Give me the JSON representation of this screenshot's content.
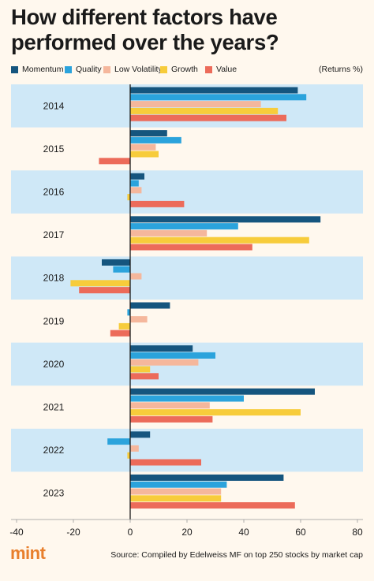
{
  "title": "How different factors have performed over the years?",
  "unit_note": "(Returns %)",
  "logo_text": "mint",
  "source": "Source: Compiled by Edelweiss MF on top 250 stocks by market cap",
  "colors": {
    "background": "#fff8ee",
    "band": "#cfe8f7",
    "Momentum": "#15557e",
    "Quality": "#2ba3dc",
    "Low Volatility": "#f5b79c",
    "Growth": "#f7cc3b",
    "Value": "#ec6b5a",
    "logo": "#e87f2c"
  },
  "chart_data": {
    "type": "bar",
    "orientation": "horizontal",
    "categories": [
      "2014",
      "2015",
      "2016",
      "2017",
      "2018",
      "2019",
      "2020",
      "2021",
      "2022",
      "2023"
    ],
    "series": [
      {
        "name": "Momentum",
        "values": [
          59,
          13,
          5,
          67,
          -10,
          14,
          22,
          65,
          7,
          54
        ]
      },
      {
        "name": "Quality",
        "values": [
          62,
          18,
          3,
          38,
          -6,
          -1,
          30,
          40,
          -8,
          34
        ]
      },
      {
        "name": "Low Volatility",
        "values": [
          46,
          9,
          4,
          27,
          4,
          6,
          24,
          28,
          3,
          32
        ]
      },
      {
        "name": "Growth",
        "values": [
          52,
          10,
          -1,
          63,
          -21,
          -4,
          7,
          60,
          -1,
          32
        ]
      },
      {
        "name": "Value",
        "values": [
          55,
          -11,
          19,
          43,
          -18,
          -7,
          10,
          29,
          25,
          58
        ]
      }
    ],
    "xlim": [
      -40,
      80
    ],
    "xticks": [
      -40,
      -20,
      0,
      20,
      40,
      60,
      80
    ],
    "grid": false,
    "legend_position": "top",
    "alternating_bands": true
  }
}
